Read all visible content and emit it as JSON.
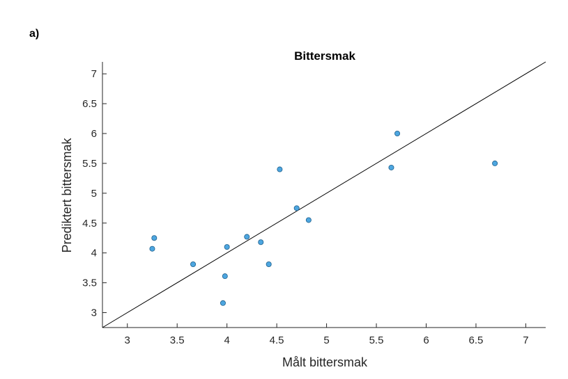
{
  "panel_label": "a)",
  "chart_data": {
    "type": "scatter",
    "title": "Bittersmak",
    "xlabel": "Målt bittersmak",
    "ylabel": "Prediktert bittersmak",
    "xlim": [
      2.75,
      7.2
    ],
    "ylim": [
      2.75,
      7.2
    ],
    "xticks": [
      3,
      3.5,
      4,
      4.5,
      5,
      5.5,
      6,
      6.5,
      7
    ],
    "yticks": [
      3,
      3.5,
      4,
      4.5,
      5,
      5.5,
      6,
      6.5,
      7
    ],
    "grid": false,
    "reference_line": {
      "slope": 1,
      "intercept": 0,
      "color": "#000000"
    },
    "marker_color": "#4da6e0",
    "marker_edge_color": "#1f5f8b",
    "points": [
      {
        "x": 3.25,
        "y": 4.07
      },
      {
        "x": 3.27,
        "y": 4.25
      },
      {
        "x": 3.66,
        "y": 3.81
      },
      {
        "x": 3.96,
        "y": 3.16
      },
      {
        "x": 3.98,
        "y": 3.61
      },
      {
        "x": 4.0,
        "y": 4.1
      },
      {
        "x": 4.2,
        "y": 4.27
      },
      {
        "x": 4.34,
        "y": 4.18
      },
      {
        "x": 4.42,
        "y": 3.81
      },
      {
        "x": 4.53,
        "y": 5.4
      },
      {
        "x": 4.7,
        "y": 4.75
      },
      {
        "x": 4.82,
        "y": 4.55
      },
      {
        "x": 5.65,
        "y": 5.43
      },
      {
        "x": 5.71,
        "y": 6.0
      },
      {
        "x": 6.69,
        "y": 5.5
      }
    ]
  }
}
